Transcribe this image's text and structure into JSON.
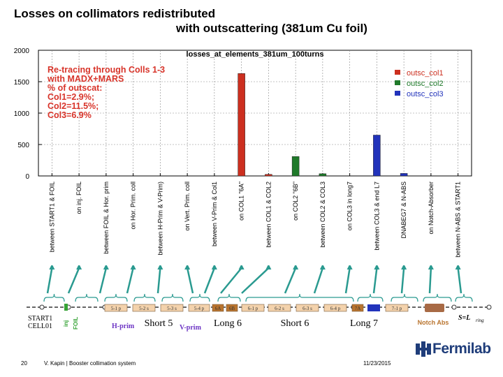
{
  "slide": {
    "title_line1": "Losses on collimators redistributed",
    "title_line2": "with  outscattering (381um Cu foil)",
    "page_number": "20",
    "author": "V. Kapin | Booster collimation system",
    "date": "11/23/2015",
    "logo_text": "Fermilab"
  },
  "chart_data": {
    "type": "bar",
    "title": "losses_at_elements_381um_100turns",
    "ylim": [
      0,
      2000
    ],
    "yticks": [
      "0",
      "500",
      "1000",
      "1500",
      "2000"
    ],
    "grid": true,
    "legend_position": "top-right",
    "annotation_lines": [
      "Re-tracing through Colls 1-3",
      "with MADX+MARS",
      "% of outscat:",
      "Col1=2.9%;",
      "Col2=11.5%;",
      "Col3=6.9%"
    ],
    "annotation_color": "#d8342a",
    "categories": [
      "between START1 & FOIL",
      "on inj. FOIL",
      "between FOIL & Hor. prim",
      "on Hor. Prim. coll",
      "between H-Prim & V-Prim)",
      "on Vert. Prim. coll",
      "between V-Prim & Col1",
      "on COL1 \"6A\"",
      "between COL1 & COL2",
      "on COL2 \"6B\"",
      "between COL2 & COL3",
      "on COL3 in long7",
      "between COL3 & end L7",
      "DNABEG7 & N-ABS",
      "on Notch-Absorber",
      "between N-ABS & START1"
    ],
    "series": [
      {
        "name": "outsc_col1",
        "color": "#cc2f1f",
        "values": [
          0,
          0,
          0,
          0,
          0,
          0,
          0,
          1630,
          25,
          0,
          0,
          0,
          0,
          0,
          0,
          0
        ]
      },
      {
        "name": "outsc_col2",
        "color": "#1f7a2a",
        "values": [
          0,
          0,
          0,
          0,
          0,
          0,
          0,
          0,
          0,
          310,
          35,
          0,
          0,
          0,
          0,
          0
        ]
      },
      {
        "name": "outsc_col3",
        "color": "#2233bb",
        "values": [
          0,
          0,
          0,
          0,
          0,
          0,
          0,
          0,
          0,
          0,
          0,
          0,
          650,
          40,
          0,
          0
        ]
      }
    ]
  },
  "lattice": {
    "start_label_1": "START1",
    "start_label_2": "CELL01",
    "inj_label": "inj",
    "foil_label": "FOIL",
    "element_labels": [
      "5-1 p",
      "5-2 s",
      "5-3 s",
      "5-4 p",
      "6A",
      "6B",
      "6-1 p",
      "6-2 s",
      "6-3 s",
      "6-4 p",
      "7A",
      "7-1 p"
    ],
    "hprim_label": "H-prim",
    "vprim_label": "V-prim",
    "section_labels": [
      "Short 5",
      "Long 6",
      "Short 6",
      "Long 7"
    ],
    "notch_label": "Notch Abs",
    "end_label": "S=L",
    "end_label_sub": "ring"
  }
}
